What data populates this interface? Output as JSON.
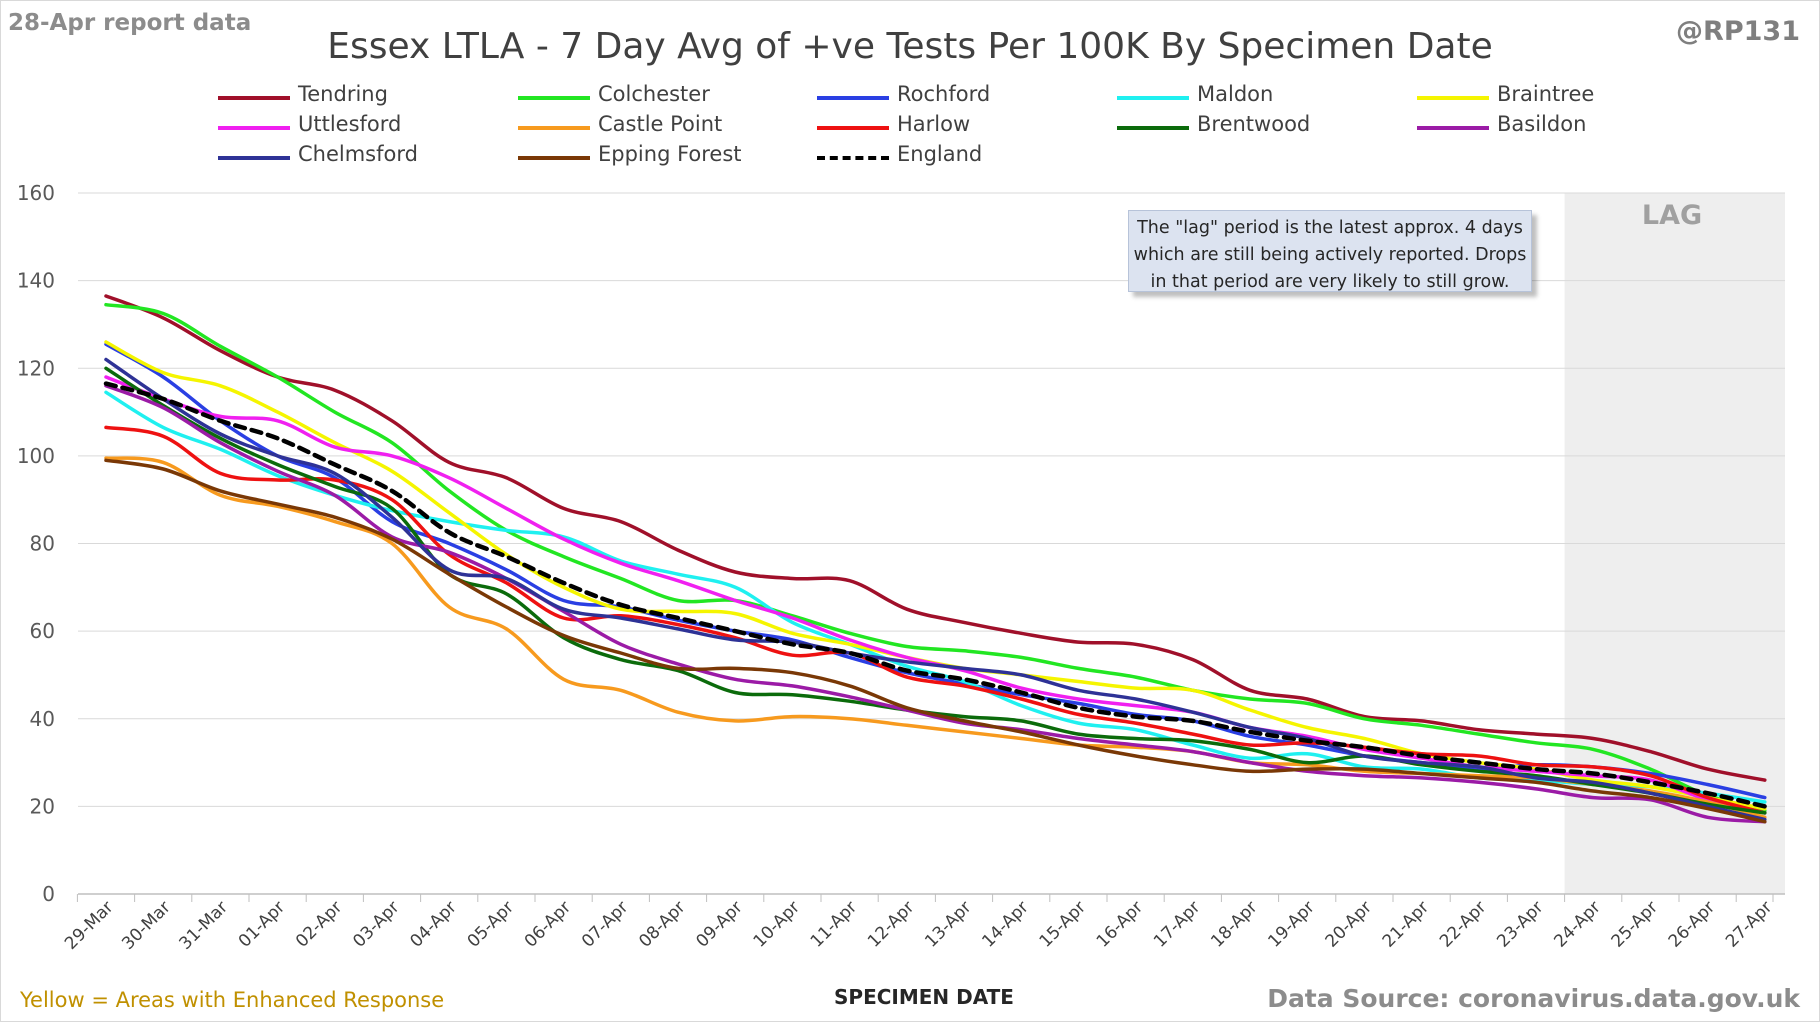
{
  "header": {
    "report_date": "28-Apr report data",
    "title": "Essex LTLA - 7 Day Avg of +ve Tests Per 100K By Specimen Date",
    "handle": "@RP131"
  },
  "footer": {
    "note": "Yellow = Areas with Enhanced Response",
    "data_source": "Data Source: coronavirus.data.gov.uk"
  },
  "annotations": {
    "lag_label": "LAG",
    "lag_note_lines": [
      "The \"lag\" period is the latest approx. 4 days",
      "which are still being actively reported.  Drops",
      "in that period are very likely to still grow."
    ]
  },
  "chart_data": {
    "type": "line",
    "title": "Essex LTLA - 7 Day Avg of +ve Tests Per 100K By Specimen Date",
    "xlabel": "SPECIMEN DATE",
    "ylabel": "",
    "ylim": [
      0,
      160
    ],
    "yticks": [
      0,
      20,
      40,
      60,
      80,
      100,
      120,
      140,
      160
    ],
    "grid": true,
    "legend_position": "top",
    "lag_period": {
      "start": "24-Apr",
      "end": "27-Apr",
      "label": "LAG"
    },
    "x": [
      "29-Mar",
      "30-Mar",
      "31-Mar",
      "01-Apr",
      "02-Apr",
      "03-Apr",
      "04-Apr",
      "05-Apr",
      "06-Apr",
      "07-Apr",
      "08-Apr",
      "09-Apr",
      "10-Apr",
      "11-Apr",
      "12-Apr",
      "13-Apr",
      "14-Apr",
      "15-Apr",
      "16-Apr",
      "17-Apr",
      "18-Apr",
      "19-Apr",
      "20-Apr",
      "21-Apr",
      "22-Apr",
      "23-Apr",
      "24-Apr",
      "25-Apr",
      "26-Apr",
      "27-Apr"
    ],
    "series": [
      {
        "name": "Tendring",
        "color": "#a0102a",
        "dash": false,
        "values": [
          136.5,
          131.5,
          124,
          118,
          115,
          108,
          98.5,
          95,
          88,
          85,
          78.5,
          73.5,
          72,
          71.5,
          65,
          62,
          59.5,
          57.5,
          57,
          53.5,
          46.5,
          44.5,
          40.5,
          39.5,
          37.5,
          36.5,
          35.5,
          32.5,
          28.5,
          26
        ]
      },
      {
        "name": "Colchester",
        "color": "#22e622",
        "dash": false,
        "values": [
          134.5,
          132.5,
          125,
          118,
          110,
          103,
          92,
          83,
          77,
          72,
          67,
          67,
          63.5,
          59.5,
          56.5,
          55.5,
          54,
          51.5,
          49.5,
          46.5,
          44.5,
          43.5,
          40,
          38.5,
          36.5,
          34.5,
          33,
          28.5,
          22.5,
          19
        ]
      },
      {
        "name": "Rochford",
        "color": "#2a3fe3",
        "dash": false,
        "values": [
          125.5,
          118,
          108,
          100,
          95,
          85,
          80,
          74,
          67,
          65.5,
          62.5,
          60,
          58,
          54,
          50.5,
          48,
          45.5,
          43.5,
          41,
          39.5,
          36,
          34,
          31.5,
          30,
          28.5,
          29.5,
          29,
          27.5,
          25,
          22
        ]
      },
      {
        "name": "Maldon",
        "color": "#1ff0f0",
        "dash": false,
        "values": [
          114.5,
          106.5,
          101.5,
          95.5,
          91,
          87.5,
          85,
          83,
          81.5,
          76,
          73,
          70,
          62,
          57,
          52,
          48.5,
          43,
          39,
          37.5,
          34,
          31,
          32,
          29,
          28.5,
          26.5,
          26,
          25,
          24.5,
          23,
          21
        ]
      },
      {
        "name": "Braintree",
        "color": "#f5f500",
        "dash": false,
        "values": [
          126,
          119,
          116,
          110,
          103,
          96.5,
          87,
          77.5,
          70,
          65,
          64.5,
          64,
          59.5,
          57,
          54,
          51.5,
          50,
          48.5,
          47,
          46.5,
          42,
          38,
          35.5,
          32,
          30,
          28.5,
          26,
          24.5,
          22,
          19.5
        ]
      },
      {
        "name": "Uttlesford",
        "color": "#f020f0",
        "dash": false,
        "values": [
          118,
          113,
          109,
          108,
          102,
          100,
          95,
          88,
          81,
          75.5,
          71.5,
          67,
          63,
          58,
          54,
          51,
          47,
          44.5,
          43,
          41.5,
          38,
          36,
          33,
          31,
          29,
          28,
          27,
          26,
          21.5,
          18.5
        ]
      },
      {
        "name": "Castle Point",
        "color": "#f79a1e",
        "dash": false,
        "values": [
          99.5,
          98.5,
          91,
          88.5,
          85,
          80,
          65.5,
          60.5,
          49,
          46.5,
          41.5,
          39.5,
          40.5,
          40,
          38.5,
          37,
          35.5,
          34,
          33.5,
          32.5,
          30,
          29.5,
          28,
          27.5,
          27,
          26.5,
          25,
          23.5,
          21,
          17.5
        ]
      },
      {
        "name": "Harlow",
        "color": "#ee1111",
        "dash": false,
        "values": [
          106.5,
          104.5,
          96,
          94.5,
          94.5,
          90,
          77.5,
          71,
          63,
          63.5,
          61.5,
          58.5,
          54.5,
          55,
          49.5,
          47.5,
          44.5,
          41,
          39,
          36.5,
          34,
          34.5,
          33.5,
          32,
          31.5,
          29.5,
          29,
          27,
          22,
          18.5
        ]
      },
      {
        "name": "Brentwood",
        "color": "#0b6b0b",
        "dash": false,
        "values": [
          120,
          111.5,
          104,
          98,
          93,
          88,
          73,
          68.5,
          58.5,
          53.5,
          51,
          46,
          45.5,
          44,
          42,
          40.5,
          39.5,
          36.5,
          35.5,
          35,
          33,
          30,
          31.5,
          29.5,
          28,
          27,
          25,
          23,
          20.5,
          18.5
        ]
      },
      {
        "name": "Basildon",
        "color": "#9b1ba6",
        "dash": false,
        "values": [
          116,
          111,
          103,
          96.5,
          91,
          81.5,
          78,
          72,
          64.5,
          57,
          52.5,
          49,
          47.5,
          45,
          42,
          39,
          37.5,
          35.5,
          34,
          32.5,
          30,
          28,
          27,
          26.5,
          25.5,
          24,
          22,
          21.5,
          17.5,
          16.5
        ]
      },
      {
        "name": "Chelmsford",
        "color": "#2e3296",
        "dash": false,
        "values": [
          122,
          113,
          105,
          100,
          96,
          86,
          74,
          72,
          65,
          63,
          60.5,
          58,
          57.5,
          55,
          53,
          51.5,
          50,
          46.5,
          44.5,
          41.5,
          38,
          35.5,
          31.5,
          30,
          29,
          26.5,
          25.5,
          23,
          20,
          17
        ]
      },
      {
        "name": "Epping Forest",
        "color": "#7a3806",
        "dash": false,
        "values": [
          99,
          97,
          92,
          89,
          86,
          81,
          73,
          65.5,
          59,
          55,
          51.5,
          51.5,
          50.5,
          47.5,
          42.5,
          39.5,
          37,
          34,
          31.5,
          29.5,
          28,
          28.5,
          28.5,
          27.5,
          26.5,
          25.5,
          23.5,
          22,
          19.5,
          16.5
        ]
      },
      {
        "name": "England",
        "color": "#000000",
        "dash": true,
        "values": [
          116.5,
          113,
          108,
          104,
          98,
          92,
          82.5,
          77,
          71,
          66,
          63,
          60,
          57,
          55,
          51,
          49,
          46,
          42.5,
          40.5,
          39.5,
          37,
          35,
          33.5,
          31.5,
          30,
          28.5,
          27.5,
          25.5,
          23,
          20
        ]
      }
    ]
  }
}
